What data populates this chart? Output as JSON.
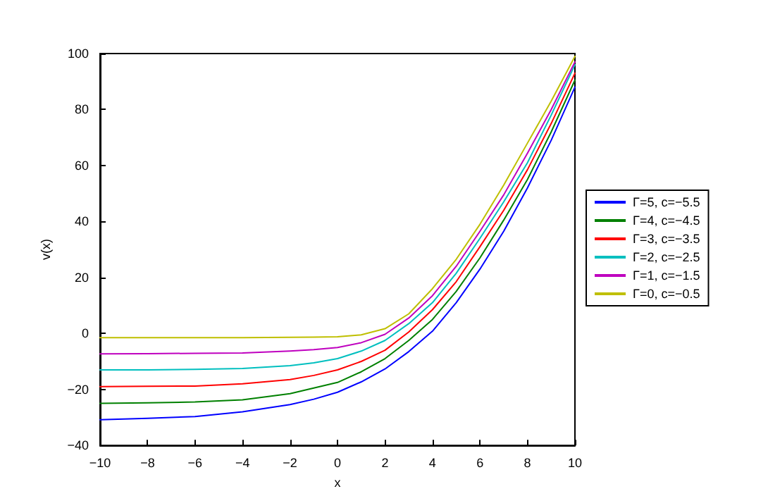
{
  "chart_data": {
    "type": "line",
    "xlabel": "x",
    "ylabel": "v(x)",
    "x": [
      -10,
      -8,
      -6,
      -4,
      -2,
      -1,
      0,
      1,
      2,
      3,
      4,
      5,
      6,
      7,
      8,
      9,
      10
    ],
    "series": [
      {
        "name": "Γ=5, c=−5.5",
        "color": "#0000ff",
        "values": [
          -30.8,
          -30.3,
          -29.7,
          -28,
          -25.4,
          -23.5,
          -21,
          -17.3,
          -12.7,
          -6.5,
          0.8,
          11,
          23,
          36.5,
          52,
          69,
          88
        ]
      },
      {
        "name": "Γ=4, c=−4.5",
        "color": "#008000",
        "values": [
          -25,
          -24.8,
          -24.5,
          -23.7,
          -21.5,
          -19.5,
          -17.5,
          -13.7,
          -9,
          -2.5,
          5,
          15,
          27,
          40.5,
          55,
          72,
          90.5
        ]
      },
      {
        "name": "Γ=3, c=−3.5",
        "color": "#ff0000",
        "values": [
          -19,
          -18.9,
          -18.8,
          -18,
          -16.5,
          -15,
          -13,
          -10,
          -6,
          0.5,
          8.5,
          18.5,
          31,
          44,
          58.5,
          75,
          93
        ]
      },
      {
        "name": "Γ=2, c=−2.5",
        "color": "#00bfbf",
        "values": [
          -13,
          -13,
          -12.8,
          -12.5,
          -11.5,
          -10.5,
          -9,
          -6.3,
          -2.5,
          3.5,
          11,
          21.5,
          34,
          47,
          61,
          78,
          96
        ]
      },
      {
        "name": "Γ=1, c=−1.5",
        "color": "#bf00bf",
        "values": [
          -7.3,
          -7.2,
          -7.1,
          -7,
          -6.3,
          -5.8,
          -5,
          -3.3,
          -0.3,
          5.5,
          13.5,
          24,
          36.5,
          49.5,
          64.4,
          80,
          97
        ]
      },
      {
        "name": "Γ=0, c=−0.5",
        "color": "#bfbf00",
        "values": [
          -1.5,
          -1.5,
          -1.5,
          -1.5,
          -1.4,
          -1.3,
          -1.2,
          -0.5,
          1.7,
          7,
          16,
          26.5,
          39,
          53,
          68,
          83,
          99
        ]
      }
    ],
    "xlim": [
      -10,
      10
    ],
    "xticks": [
      -10,
      -8,
      -6,
      -4,
      -2,
      0,
      2,
      4,
      6,
      8,
      10
    ],
    "ylim": [
      -40,
      100
    ],
    "yticks": [
      -40,
      -20,
      0,
      20,
      40,
      60,
      80,
      100
    ],
    "grid": false,
    "legend": "right",
    "marker": "none",
    "line_style": "solid"
  }
}
